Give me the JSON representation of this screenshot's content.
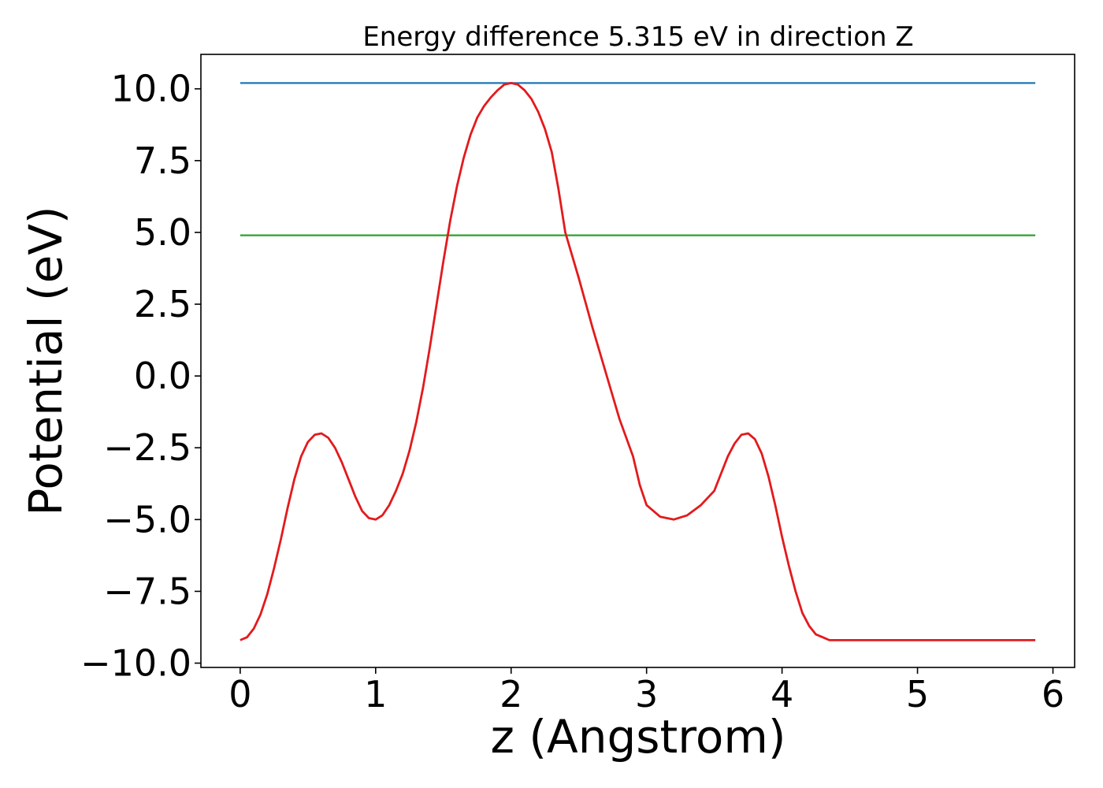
{
  "chart_data": {
    "type": "line",
    "title": "Energy difference 5.315 eV in direction Z",
    "xlabel": "z (Angstrom)",
    "ylabel": "Potential (eV)",
    "xlim": [
      -0.29,
      6.16
    ],
    "ylim": [
      -10.15,
      11.2
    ],
    "xticks": [
      0,
      1,
      2,
      3,
      4,
      5,
      6
    ],
    "xtick_labels": [
      "0",
      "1",
      "2",
      "3",
      "4",
      "5",
      "6"
    ],
    "yticks": [
      -10,
      -7.5,
      -5,
      -2.5,
      0,
      2.5,
      5,
      7.5,
      10
    ],
    "ytick_labels": [
      "−10.0",
      "−7.5",
      "−5.0",
      "−2.5",
      "0.0",
      "2.5",
      "5.0",
      "7.5",
      "10.0"
    ],
    "grid": false,
    "series": [
      {
        "color": "#1f77b4",
        "x": [
          0,
          5.87
        ],
        "y": [
          10.2,
          10.2
        ]
      },
      {
        "color": "#2ca02c",
        "x": [
          0,
          5.87
        ],
        "y": [
          4.9,
          4.9
        ]
      },
      {
        "color": "#e31a1c",
        "x": [
          0.0,
          0.05,
          0.1,
          0.15,
          0.2,
          0.25,
          0.3,
          0.35,
          0.4,
          0.45,
          0.5,
          0.55,
          0.6,
          0.65,
          0.7,
          0.75,
          0.8,
          0.85,
          0.9,
          0.95,
          1.0,
          1.05,
          1.1,
          1.15,
          1.2,
          1.25,
          1.3,
          1.35,
          1.4,
          1.45,
          1.5,
          1.55,
          1.6,
          1.65,
          1.7,
          1.75,
          1.8,
          1.85,
          1.9,
          1.95,
          2.0,
          2.05,
          2.1,
          2.15,
          2.2,
          2.25,
          2.3,
          2.35,
          2.4,
          2.5,
          2.6,
          2.7,
          2.8,
          2.9,
          2.95,
          3.0,
          3.1,
          3.2,
          3.3,
          3.4,
          3.5,
          3.55,
          3.6,
          3.65,
          3.7,
          3.75,
          3.8,
          3.85,
          3.9,
          3.95,
          4.0,
          4.05,
          4.1,
          4.15,
          4.2,
          4.25,
          4.3,
          4.35,
          4.4,
          4.45,
          4.5,
          4.55,
          4.6,
          4.65,
          4.7,
          4.75,
          4.8,
          4.85,
          4.9,
          4.95,
          5.0,
          5.05,
          5.1,
          5.15,
          5.2,
          5.25,
          5.3,
          5.35,
          5.4,
          5.45,
          5.5,
          5.55,
          5.6,
          5.65,
          5.7,
          5.75,
          5.8,
          5.87
        ],
        "y": [
          -9.2,
          -9.1,
          -8.8,
          -8.3,
          -7.6,
          -6.7,
          -5.7,
          -4.6,
          -3.6,
          -2.8,
          -2.3,
          -2.05,
          -2.0,
          -2.15,
          -2.5,
          -3.0,
          -3.6,
          -4.2,
          -4.7,
          -4.95,
          -5.0,
          -4.85,
          -4.5,
          -4.0,
          -3.4,
          -2.6,
          -1.6,
          -0.4,
          1.0,
          2.5,
          4.0,
          5.4,
          6.6,
          7.6,
          8.4,
          9.0,
          9.4,
          9.7,
          9.95,
          10.15,
          10.2,
          10.15,
          9.95,
          9.65,
          9.2,
          8.6,
          7.8,
          6.5,
          5.0,
          3.4,
          1.7,
          0.1,
          -1.5,
          -2.8,
          -3.8,
          -4.5,
          -4.9,
          -5.0,
          -4.85,
          -4.5,
          -4.0,
          -3.4,
          -2.8,
          -2.35,
          -2.05,
          -2.0,
          -2.2,
          -2.7,
          -3.5,
          -4.5,
          -5.6,
          -6.6,
          -7.5,
          -8.25,
          -8.7,
          -9.0,
          -9.1,
          -9.2,
          -9.2,
          -9.2,
          -9.2,
          -9.2,
          -9.2,
          -9.2,
          -9.2,
          -9.2,
          -9.2,
          -9.2,
          -9.2,
          -9.2,
          -9.2,
          -9.2,
          -9.2,
          -9.2,
          -9.2,
          -9.2,
          -9.2,
          -9.2,
          -9.2,
          -9.2,
          -9.2,
          -9.2,
          -9.2,
          -9.2,
          -9.2,
          -9.2,
          -9.2,
          -9.2
        ]
      }
    ]
  }
}
